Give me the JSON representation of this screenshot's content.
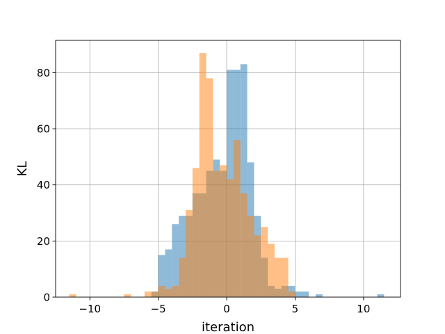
{
  "chart_data": {
    "type": "histogram",
    "xlabel": "iteration",
    "ylabel": "KL",
    "xlim": [
      -12.5,
      12.7
    ],
    "ylim": [
      0,
      91.5
    ],
    "x_ticks": [
      -10,
      -5,
      0,
      5,
      10
    ],
    "x_tick_labels": [
      "−10",
      "−5",
      "0",
      "5",
      "10"
    ],
    "y_ticks": [
      0,
      20,
      40,
      60,
      80
    ],
    "y_tick_labels": [
      "0",
      "20",
      "40",
      "60",
      "80"
    ],
    "grid": true,
    "legend": "none",
    "series": [
      {
        "color": "#1f77b4",
        "alpha": 0.5,
        "bin_width": 0.5,
        "bins": [
          {
            "x0": -5.5,
            "count": 2
          },
          {
            "x0": -5.0,
            "count": 15
          },
          {
            "x0": -4.5,
            "count": 17
          },
          {
            "x0": -4.0,
            "count": 26
          },
          {
            "x0": -3.5,
            "count": 29
          },
          {
            "x0": -3.0,
            "count": 29
          },
          {
            "x0": -2.5,
            "count": 37
          },
          {
            "x0": -2.0,
            "count": 37
          },
          {
            "x0": -1.5,
            "count": 45
          },
          {
            "x0": -1.0,
            "count": 49
          },
          {
            "x0": -0.5,
            "count": 45
          },
          {
            "x0": 0.0,
            "count": 81
          },
          {
            "x0": 0.5,
            "count": 81
          },
          {
            "x0": 1.0,
            "count": 83
          },
          {
            "x0": 1.5,
            "count": 48
          },
          {
            "x0": 2.0,
            "count": 29
          },
          {
            "x0": 2.5,
            "count": 14
          },
          {
            "x0": 3.0,
            "count": 4
          },
          {
            "x0": 3.5,
            "count": 3
          },
          {
            "x0": 4.0,
            "count": 4
          },
          {
            "x0": 4.5,
            "count": 4
          },
          {
            "x0": 5.0,
            "count": 2
          },
          {
            "x0": 5.5,
            "count": 2
          },
          {
            "x0": 6.5,
            "count": 1
          },
          {
            "x0": 11.0,
            "count": 1
          }
        ]
      },
      {
        "color": "#ff7f0e",
        "alpha": 0.5,
        "bin_width": 0.5,
        "bins": [
          {
            "x0": -11.5,
            "count": 1
          },
          {
            "x0": -7.5,
            "count": 1
          },
          {
            "x0": -6.0,
            "count": 2
          },
          {
            "x0": -5.5,
            "count": 2
          },
          {
            "x0": -5.0,
            "count": 4
          },
          {
            "x0": -4.5,
            "count": 3
          },
          {
            "x0": -4.0,
            "count": 4
          },
          {
            "x0": -3.5,
            "count": 14
          },
          {
            "x0": -3.0,
            "count": 31
          },
          {
            "x0": -2.5,
            "count": 46
          },
          {
            "x0": -2.0,
            "count": 87
          },
          {
            "x0": -1.5,
            "count": 78
          },
          {
            "x0": -1.0,
            "count": 45
          },
          {
            "x0": -0.5,
            "count": 47
          },
          {
            "x0": 0.0,
            "count": 42
          },
          {
            "x0": 0.5,
            "count": 56
          },
          {
            "x0": 1.0,
            "count": 37
          },
          {
            "x0": 1.5,
            "count": 29
          },
          {
            "x0": 2.0,
            "count": 22
          },
          {
            "x0": 2.5,
            "count": 25
          },
          {
            "x0": 3.0,
            "count": 19
          },
          {
            "x0": 3.5,
            "count": 14
          },
          {
            "x0": 4.0,
            "count": 14
          },
          {
            "x0": 4.5,
            "count": 2
          }
        ]
      }
    ]
  }
}
